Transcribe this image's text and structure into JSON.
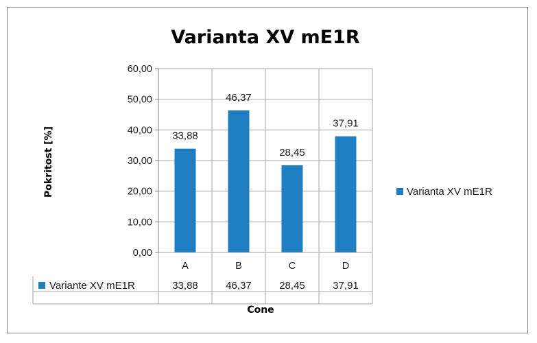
{
  "colors": {
    "bar": "#1f7ec2",
    "grid": "#a6a6a6",
    "axis": "#7f7f7f"
  },
  "chart_data": {
    "type": "bar",
    "title": "Varianta XV mE1R",
    "xlabel": "Cone",
    "ylabel": "Pokritost [%]",
    "categories": [
      "A",
      "B",
      "C",
      "D"
    ],
    "series": [
      {
        "name": "Varianta XV mE1R",
        "values": [
          33.88,
          46.37,
          28.45,
          37.91
        ]
      }
    ],
    "data_labels": [
      "33,88",
      "46,37",
      "28,45",
      "37,91"
    ],
    "yticks": [
      "0,00",
      "10,00",
      "20,00",
      "30,00",
      "40,00",
      "50,00",
      "60,00"
    ],
    "ylim": [
      0,
      60
    ],
    "grid": true,
    "legend_position": "right",
    "legend_label": "Varianta XV mE1R",
    "data_table": {
      "series_label": "Variante XV mE1R",
      "values": [
        "33,88",
        "46,37",
        "28,45",
        "37,91"
      ]
    }
  }
}
